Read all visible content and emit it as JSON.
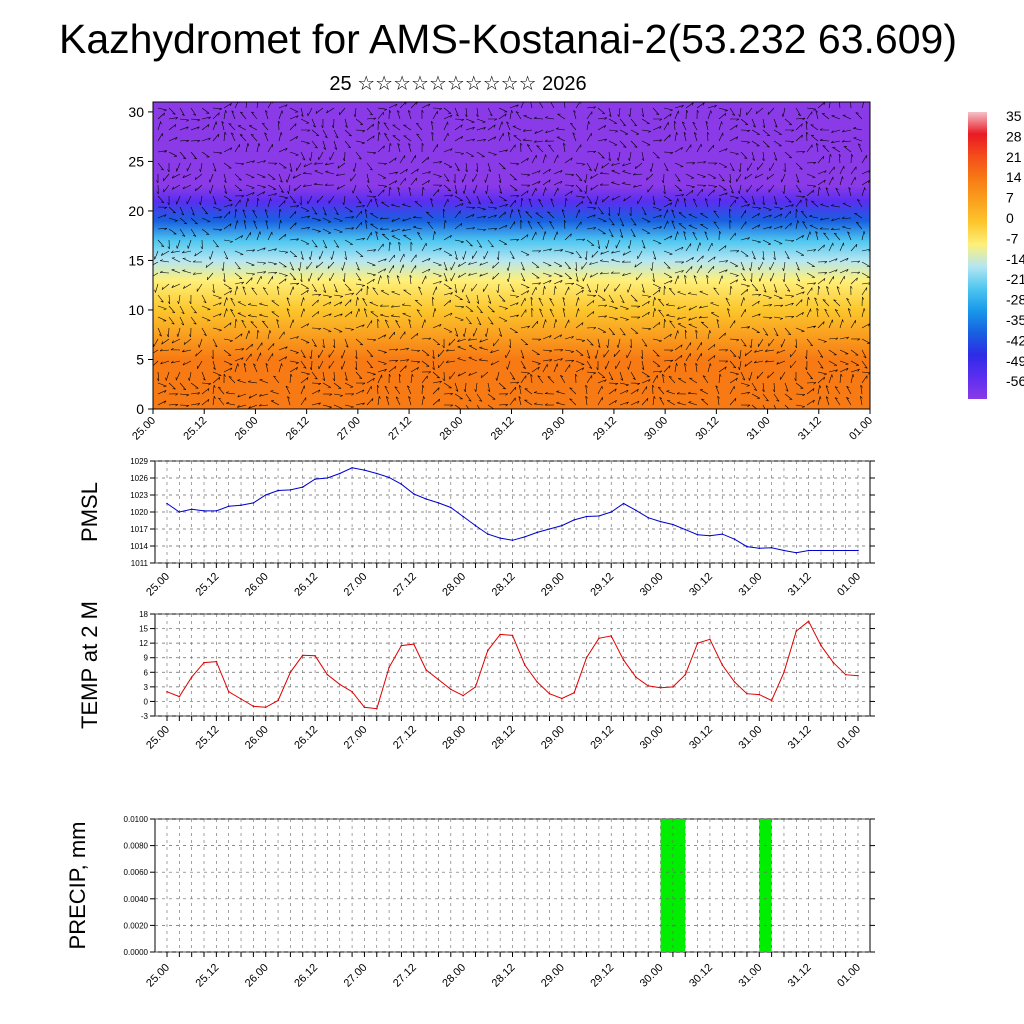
{
  "page": {
    "title": "Kazhydromet for AMS-Kostanai-2(53.232 63.609)",
    "subtitle": "25 ☆☆☆☆☆☆☆☆☆☆ 2026"
  },
  "colors": {
    "pmsl_line": "#0000cc",
    "temp_line": "#dd0000",
    "precip_bar": "#00ee00",
    "grid": "#666666",
    "arrows": "#000000"
  },
  "chart_data": [
    {
      "id": "cross-section",
      "type": "heatmap",
      "title": "",
      "xlabel": "",
      "ylabel": "",
      "x_ticks": [
        "25.00",
        "25.12",
        "26.00",
        "26.12",
        "27.00",
        "27.12",
        "28.00",
        "28.12",
        "29.00",
        "29.12",
        "30.00",
        "30.12",
        "31.00",
        "31.12",
        "01.00"
      ],
      "y_ticks": [
        0,
        5,
        10,
        15,
        20,
        25,
        30
      ],
      "ylim": [
        0,
        31
      ],
      "colorbar_labels": [
        "35",
        "28",
        "21",
        "14",
        "7",
        "0",
        "-7",
        "-14",
        "-21",
        "-28",
        "-35",
        "-42",
        "-49",
        "-56"
      ],
      "colorbar_colors": [
        "#f5c0c8",
        "#e81a24",
        "#f44d1a",
        "#f77a14",
        "#faa01e",
        "#fcc62c",
        "#fef07a",
        "#b4e6f2",
        "#4ec6f0",
        "#1898ea",
        "#1860e0",
        "#2d2ce6",
        "#5a2ef0",
        "#8a3ae6"
      ],
      "profile": [
        {
          "h": 0,
          "t": 14
        },
        {
          "h": 5,
          "t": 11
        },
        {
          "h": 10,
          "t": 3
        },
        {
          "h": 13,
          "t": -4
        },
        {
          "h": 15,
          "t": -12
        },
        {
          "h": 17,
          "t": -22
        },
        {
          "h": 19,
          "t": -34
        },
        {
          "h": 21,
          "t": -48
        },
        {
          "h": 22.5,
          "t": -54
        },
        {
          "h": 26,
          "t": -58
        },
        {
          "h": 31,
          "t": -58
        }
      ]
    },
    {
      "id": "pmsl",
      "type": "line",
      "ylabel": "PMSL",
      "x_ticks": [
        "25.00",
        "25.12",
        "26.00",
        "26.12",
        "27.00",
        "27.12",
        "28.00",
        "28.12",
        "29.00",
        "29.12",
        "30.00",
        "30.12",
        "31.00",
        "31.12",
        "01.00"
      ],
      "y_ticks": [
        1011,
        1014,
        1017,
        1020,
        1023,
        1026,
        1029
      ],
      "ylim": [
        1011,
        1029
      ],
      "x": [
        0,
        3,
        6,
        9,
        12,
        15,
        18,
        21,
        24,
        27,
        30,
        33,
        36,
        39,
        42,
        45,
        48,
        51,
        54,
        57,
        60,
        63,
        66,
        69,
        72,
        75,
        78,
        81,
        84,
        87,
        90,
        93,
        96,
        99,
        102,
        105,
        108,
        111,
        114,
        117,
        120,
        123,
        126,
        129,
        132,
        135,
        138,
        141,
        144,
        147,
        150,
        153,
        156,
        159,
        162,
        165,
        168
      ],
      "series": [
        {
          "name": "PMSL",
          "values": [
            1021.5,
            1020.0,
            1020.5,
            1020.2,
            1020.2,
            1021.0,
            1021.2,
            1021.6,
            1023.0,
            1023.8,
            1023.9,
            1024.4,
            1025.8,
            1026.0,
            1026.8,
            1027.8,
            1027.4,
            1026.8,
            1026.1,
            1024.9,
            1023.2,
            1022.3,
            1021.6,
            1020.8,
            1019.2,
            1017.6,
            1016.1,
            1015.4,
            1015.0,
            1015.6,
            1016.4,
            1017.0,
            1017.6,
            1018.6,
            1019.2,
            1019.3,
            1020.0,
            1021.5,
            1020.3,
            1019.0,
            1018.3,
            1017.8,
            1016.9,
            1016.0,
            1015.8,
            1016.1,
            1015.2,
            1013.9,
            1013.6,
            1013.7,
            1013.2,
            1012.8,
            1013.2,
            1013.2,
            1013.2,
            1013.2,
            1013.2
          ]
        }
      ]
    },
    {
      "id": "temp",
      "type": "line",
      "ylabel": "TEMP at 2 M",
      "x_ticks": [
        "25.00",
        "25.12",
        "26.00",
        "26.12",
        "27.00",
        "27.12",
        "28.00",
        "28.12",
        "29.00",
        "29.12",
        "30.00",
        "30.12",
        "31.00",
        "31.12",
        "01.00"
      ],
      "y_ticks": [
        -3,
        0,
        3,
        6,
        9,
        12,
        15,
        18
      ],
      "ylim": [
        -3,
        18
      ],
      "x": [
        0,
        3,
        6,
        9,
        12,
        15,
        18,
        21,
        24,
        27,
        30,
        33,
        36,
        39,
        42,
        45,
        48,
        51,
        54,
        57,
        60,
        63,
        66,
        69,
        72,
        75,
        78,
        81,
        84,
        87,
        90,
        93,
        96,
        99,
        102,
        105,
        108,
        111,
        114,
        117,
        120,
        123,
        126,
        129,
        132,
        135,
        138,
        141,
        144,
        147,
        150,
        153,
        156,
        159,
        162,
        165,
        168
      ],
      "series": [
        {
          "name": "T2M",
          "values": [
            2.0,
            1.0,
            5.0,
            8.0,
            8.2,
            2.0,
            0.5,
            -1.0,
            -1.2,
            0.2,
            6.0,
            9.5,
            9.4,
            5.5,
            3.5,
            2.0,
            -1.2,
            -1.5,
            7.0,
            11.5,
            11.8,
            6.5,
            4.5,
            2.5,
            1.2,
            3.0,
            10.5,
            13.8,
            13.6,
            7.5,
            4.0,
            1.6,
            0.6,
            1.8,
            9.0,
            13.0,
            13.5,
            8.5,
            5.0,
            3.2,
            2.8,
            3.0,
            5.5,
            12.0,
            12.8,
            7.5,
            4.0,
            1.6,
            1.4,
            0.2,
            6.0,
            14.5,
            16.5,
            11.5,
            8.0,
            5.5,
            5.3
          ]
        }
      ]
    },
    {
      "id": "precip",
      "type": "bar",
      "ylabel": "PRECIP, mm",
      "x_ticks": [
        "25.00",
        "25.12",
        "26.00",
        "26.12",
        "27.00",
        "27.12",
        "28.00",
        "28.12",
        "29.00",
        "29.12",
        "30.00",
        "30.12",
        "31.00",
        "31.12",
        "01.00"
      ],
      "y_ticks": [
        "0.0000",
        "0.0020",
        "0.0040",
        "0.0060",
        "0.0080",
        "0.0100"
      ],
      "ylim": [
        0,
        0.01
      ],
      "bars": [
        {
          "x_start": 120.0,
          "x_end": 126.0,
          "value": 0.01
        },
        {
          "x_start": 144.0,
          "x_end": 147.0,
          "value": 0.01
        }
      ]
    }
  ]
}
